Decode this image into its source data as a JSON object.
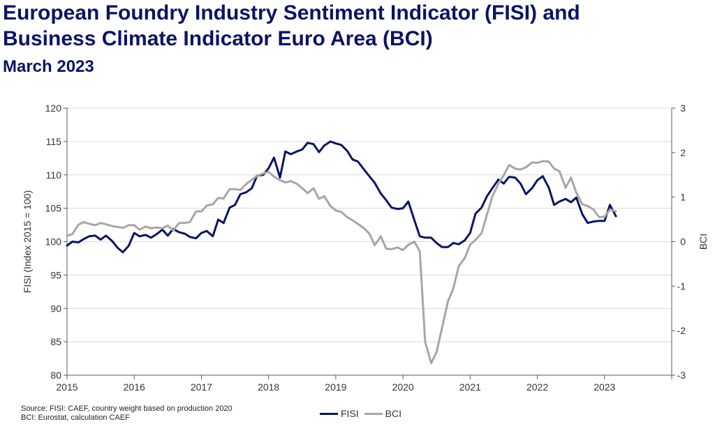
{
  "header": {
    "title_line1": "European Foundry Industry Sentiment Indicator (FISI) and",
    "title_line2": "Business Climate Indicator Euro Area (BCI)",
    "subtitle": "March 2023"
  },
  "footnote": {
    "line1": "Source: FISI: CAEF, country weight based on production 2020",
    "line2": "BCI: Eurostat, calculation CAEF"
  },
  "colors": {
    "fisi": "#0a1464",
    "bci": "#a6a6a6",
    "grid": "#d9d9d9",
    "axis": "#595959"
  },
  "chart_data": {
    "type": "line",
    "xlabel": "",
    "ylabel": "FISI (Index 2015 = 100)",
    "y2label": "BCI",
    "xlim": [
      2015,
      2024
    ],
    "ylim": [
      80,
      120
    ],
    "y2lim": [
      -3,
      3
    ],
    "xticks": [
      "2015",
      "2016",
      "2017",
      "2018",
      "2019",
      "2020",
      "2021",
      "2022",
      "2023"
    ],
    "yticks": [
      "80",
      "85",
      "90",
      "95",
      "100",
      "105",
      "110",
      "115",
      "120"
    ],
    "y2ticks": [
      "-3",
      "-2",
      "-1",
      "0",
      "1",
      "2",
      "3"
    ],
    "grid": true,
    "legend_position": "bottom",
    "series": [
      {
        "name": "FISI",
        "axis": "left",
        "points": [
          [
            2015.0,
            99.4
          ],
          [
            2015.08,
            100.0
          ],
          [
            2015.17,
            99.9
          ],
          [
            2015.25,
            100.4
          ],
          [
            2015.33,
            100.8
          ],
          [
            2015.42,
            100.9
          ],
          [
            2015.5,
            100.3
          ],
          [
            2015.58,
            100.9
          ],
          [
            2015.67,
            100.1
          ],
          [
            2015.75,
            99.1
          ],
          [
            2015.83,
            98.4
          ],
          [
            2015.92,
            99.4
          ],
          [
            2016.0,
            101.3
          ],
          [
            2016.08,
            100.8
          ],
          [
            2016.17,
            101.0
          ],
          [
            2016.25,
            100.6
          ],
          [
            2016.33,
            101.1
          ],
          [
            2016.42,
            101.8
          ],
          [
            2016.5,
            100.9
          ],
          [
            2016.58,
            101.9
          ],
          [
            2016.67,
            101.4
          ],
          [
            2016.75,
            101.2
          ],
          [
            2016.83,
            100.7
          ],
          [
            2016.92,
            100.5
          ],
          [
            2017.0,
            101.3
          ],
          [
            2017.08,
            101.6
          ],
          [
            2017.17,
            100.8
          ],
          [
            2017.25,
            103.3
          ],
          [
            2017.33,
            102.8
          ],
          [
            2017.42,
            105.1
          ],
          [
            2017.5,
            105.5
          ],
          [
            2017.58,
            107.1
          ],
          [
            2017.67,
            107.4
          ],
          [
            2017.75,
            108.0
          ],
          [
            2017.83,
            109.9
          ],
          [
            2017.92,
            110.0
          ],
          [
            2018.0,
            111.0
          ],
          [
            2018.08,
            112.6
          ],
          [
            2018.17,
            109.6
          ],
          [
            2018.25,
            113.5
          ],
          [
            2018.33,
            113.1
          ],
          [
            2018.42,
            113.5
          ],
          [
            2018.5,
            113.8
          ],
          [
            2018.58,
            114.8
          ],
          [
            2018.67,
            114.6
          ],
          [
            2018.75,
            113.4
          ],
          [
            2018.83,
            114.4
          ],
          [
            2018.92,
            115.0
          ],
          [
            2019.0,
            114.7
          ],
          [
            2019.08,
            114.5
          ],
          [
            2019.17,
            113.6
          ],
          [
            2019.25,
            112.3
          ],
          [
            2019.33,
            112.0
          ],
          [
            2019.42,
            110.8
          ],
          [
            2019.5,
            109.8
          ],
          [
            2019.58,
            108.8
          ],
          [
            2019.67,
            107.2
          ],
          [
            2019.75,
            106.2
          ],
          [
            2019.83,
            105.1
          ],
          [
            2019.92,
            104.9
          ],
          [
            2020.0,
            105.0
          ],
          [
            2020.08,
            106.0
          ],
          [
            2020.17,
            103.2
          ],
          [
            2020.25,
            100.8
          ],
          [
            2020.33,
            100.6
          ],
          [
            2020.42,
            100.6
          ],
          [
            2020.5,
            99.8
          ],
          [
            2020.58,
            99.2
          ],
          [
            2020.67,
            99.2
          ],
          [
            2020.75,
            99.8
          ],
          [
            2020.83,
            99.6
          ],
          [
            2020.92,
            100.2
          ],
          [
            2021.0,
            101.3
          ],
          [
            2021.08,
            104.2
          ],
          [
            2021.17,
            105.1
          ],
          [
            2021.25,
            106.8
          ],
          [
            2021.33,
            108.0
          ],
          [
            2021.42,
            109.3
          ],
          [
            2021.5,
            108.7
          ],
          [
            2021.58,
            109.7
          ],
          [
            2021.67,
            109.6
          ],
          [
            2021.75,
            108.7
          ],
          [
            2021.83,
            107.1
          ],
          [
            2021.92,
            108.0
          ],
          [
            2022.0,
            109.2
          ],
          [
            2022.08,
            109.8
          ],
          [
            2022.17,
            108.1
          ],
          [
            2022.25,
            105.5
          ],
          [
            2022.33,
            106.0
          ],
          [
            2022.42,
            106.4
          ],
          [
            2022.5,
            105.9
          ],
          [
            2022.58,
            106.6
          ],
          [
            2022.67,
            104.1
          ],
          [
            2022.75,
            102.8
          ],
          [
            2022.83,
            103.0
          ],
          [
            2022.92,
            103.1
          ],
          [
            2023.0,
            103.1
          ],
          [
            2023.08,
            105.5
          ],
          [
            2023.17,
            103.8
          ]
        ]
      },
      {
        "name": "BCI",
        "axis": "right",
        "points": [
          [
            2015.0,
            0.13
          ],
          [
            2015.08,
            0.17
          ],
          [
            2015.17,
            0.38
          ],
          [
            2015.25,
            0.44
          ],
          [
            2015.33,
            0.4
          ],
          [
            2015.42,
            0.37
          ],
          [
            2015.5,
            0.42
          ],
          [
            2015.58,
            0.39
          ],
          [
            2015.67,
            0.35
          ],
          [
            2015.75,
            0.33
          ],
          [
            2015.83,
            0.31
          ],
          [
            2015.92,
            0.37
          ],
          [
            2016.0,
            0.37
          ],
          [
            2016.08,
            0.27
          ],
          [
            2016.17,
            0.34
          ],
          [
            2016.25,
            0.3
          ],
          [
            2016.33,
            0.32
          ],
          [
            2016.42,
            0.3
          ],
          [
            2016.5,
            0.36
          ],
          [
            2016.58,
            0.25
          ],
          [
            2016.67,
            0.42
          ],
          [
            2016.75,
            0.42
          ],
          [
            2016.83,
            0.44
          ],
          [
            2016.92,
            0.68
          ],
          [
            2017.0,
            0.68
          ],
          [
            2017.08,
            0.81
          ],
          [
            2017.17,
            0.84
          ],
          [
            2017.25,
            0.98
          ],
          [
            2017.33,
            0.97
          ],
          [
            2017.42,
            1.18
          ],
          [
            2017.5,
            1.18
          ],
          [
            2017.58,
            1.16
          ],
          [
            2017.67,
            1.3
          ],
          [
            2017.75,
            1.39
          ],
          [
            2017.83,
            1.48
          ],
          [
            2017.92,
            1.53
          ],
          [
            2018.0,
            1.57
          ],
          [
            2018.08,
            1.46
          ],
          [
            2018.17,
            1.38
          ],
          [
            2018.25,
            1.33
          ],
          [
            2018.33,
            1.36
          ],
          [
            2018.42,
            1.3
          ],
          [
            2018.5,
            1.2
          ],
          [
            2018.58,
            1.09
          ],
          [
            2018.67,
            1.2
          ],
          [
            2018.75,
            0.96
          ],
          [
            2018.83,
            1.02
          ],
          [
            2018.92,
            0.8
          ],
          [
            2019.0,
            0.7
          ],
          [
            2019.08,
            0.67
          ],
          [
            2019.17,
            0.55
          ],
          [
            2019.25,
            0.48
          ],
          [
            2019.33,
            0.4
          ],
          [
            2019.42,
            0.3
          ],
          [
            2019.5,
            0.18
          ],
          [
            2019.58,
            -0.08
          ],
          [
            2019.67,
            0.12
          ],
          [
            2019.75,
            -0.16
          ],
          [
            2019.83,
            -0.17
          ],
          [
            2019.92,
            -0.13
          ],
          [
            2020.0,
            -0.19
          ],
          [
            2020.08,
            -0.07
          ],
          [
            2020.17,
            0.0
          ],
          [
            2020.25,
            -0.22
          ],
          [
            2020.33,
            -2.25
          ],
          [
            2020.42,
            -2.73
          ],
          [
            2020.5,
            -2.48
          ],
          [
            2020.58,
            -1.95
          ],
          [
            2020.67,
            -1.34
          ],
          [
            2020.75,
            -1.05
          ],
          [
            2020.83,
            -0.55
          ],
          [
            2020.92,
            -0.37
          ],
          [
            2021.0,
            -0.07
          ],
          [
            2021.08,
            0.04
          ],
          [
            2021.17,
            0.19
          ],
          [
            2021.25,
            0.61
          ],
          [
            2021.33,
            1.01
          ],
          [
            2021.42,
            1.3
          ],
          [
            2021.5,
            1.49
          ],
          [
            2021.58,
            1.72
          ],
          [
            2021.67,
            1.64
          ],
          [
            2021.75,
            1.62
          ],
          [
            2021.83,
            1.67
          ],
          [
            2021.92,
            1.78
          ],
          [
            2022.0,
            1.77
          ],
          [
            2022.08,
            1.81
          ],
          [
            2022.17,
            1.8
          ],
          [
            2022.25,
            1.64
          ],
          [
            2022.33,
            1.58
          ],
          [
            2022.42,
            1.21
          ],
          [
            2022.5,
            1.44
          ],
          [
            2022.58,
            1.1
          ],
          [
            2022.67,
            0.84
          ],
          [
            2022.75,
            0.8
          ],
          [
            2022.83,
            0.73
          ],
          [
            2022.92,
            0.55
          ],
          [
            2023.0,
            0.56
          ],
          [
            2023.08,
            0.72
          ],
          [
            2023.17,
            0.68
          ]
        ]
      }
    ]
  }
}
